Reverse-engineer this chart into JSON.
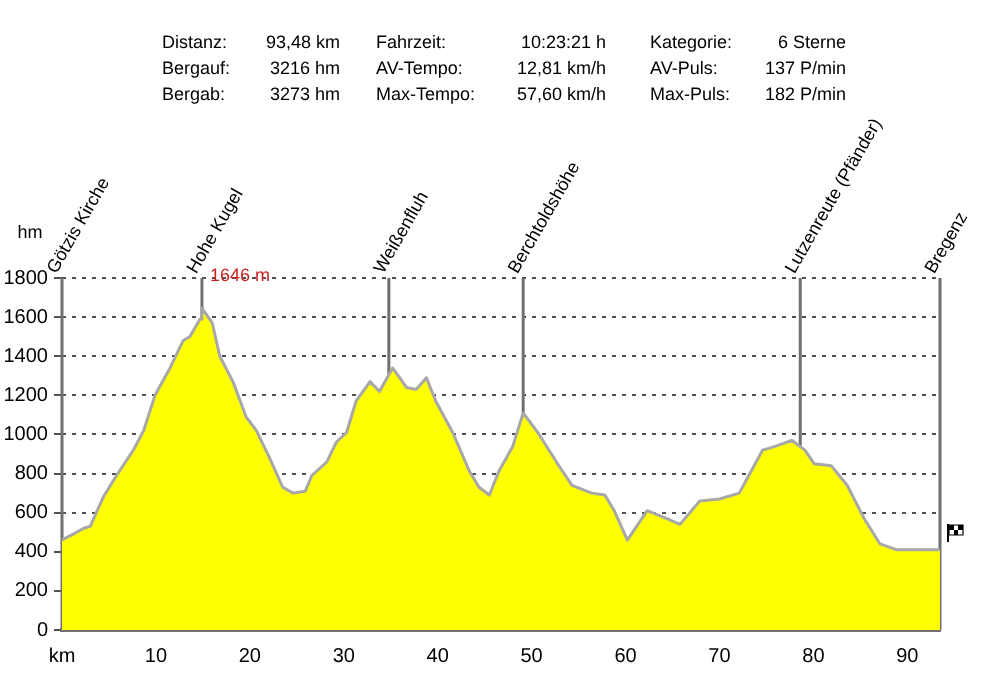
{
  "chart_data": {
    "type": "area",
    "ylabel": "hm",
    "x": [
      0,
      1.2,
      2.3,
      3.0,
      4.4,
      5.8,
      7.6,
      8.7,
      9.9,
      11.5,
      12.9,
      13.6,
      14.7,
      14.9,
      16.0,
      16.8,
      18.2,
      19.6,
      20.7,
      22.1,
      23.5,
      24.6,
      25.9,
      26.6,
      28.2,
      29.2,
      30.3,
      31.3,
      32.8,
      33.8,
      35.2,
      36.7,
      37.7,
      38.8,
      39.8,
      41.6,
      43.4,
      44.4,
      45.5,
      46.5,
      48.0,
      49.1,
      50.8,
      52.9,
      54.3,
      56.4,
      57.8,
      58.8,
      60.2,
      62.3,
      64.4,
      65.8,
      67.9,
      70.0,
      72.1,
      74.6,
      76.0,
      77.7,
      79.1,
      80.1,
      81.9,
      83.6,
      85.4,
      87.1,
      88.9,
      92.7,
      93.48
    ],
    "values": [
      460,
      490,
      520,
      530,
      680,
      790,
      920,
      1020,
      1200,
      1340,
      1480,
      1500,
      1590,
      1646,
      1570,
      1400,
      1270,
      1090,
      1020,
      880,
      730,
      700,
      710,
      790,
      860,
      960,
      1010,
      1170,
      1270,
      1220,
      1340,
      1240,
      1230,
      1290,
      1170,
      1010,
      810,
      730,
      690,
      810,
      940,
      1110,
      1000,
      840,
      740,
      700,
      690,
      610,
      460,
      610,
      570,
      540,
      660,
      670,
      700,
      920,
      940,
      970,
      920,
      850,
      840,
      740,
      570,
      440,
      410,
      410,
      410
    ],
    "color": "#ffff00",
    "xlim": [
      0,
      93.48
    ],
    "xticks": [
      {
        "value": 0,
        "label": "km"
      },
      10,
      20,
      30,
      40,
      50,
      60,
      70,
      80,
      90
    ],
    "ylim": [
      0,
      1800
    ],
    "yticks": [
      0,
      200,
      400,
      600,
      800,
      1000,
      1200,
      1400,
      1600,
      1800
    ],
    "grid": "y",
    "legend": false,
    "ref_lines": [
      {
        "axis": "x",
        "value": 0,
        "label": "Götzis Kirche"
      },
      {
        "axis": "x",
        "value": 14.9,
        "label": "Hohe Kugel"
      },
      {
        "axis": "x",
        "value": 34.8,
        "label": "Weißenfluh"
      },
      {
        "axis": "x",
        "value": 49.1,
        "label": "Berchtoldshöhe"
      },
      {
        "axis": "x",
        "value": 78.6,
        "label": "Lutzenreute (Pfänder)"
      },
      {
        "axis": "x",
        "value": 93.48,
        "label": "Bregenz"
      }
    ],
    "annotations": [
      "Distanz:",
      "93,48 km",
      "Fahrzeit:",
      "10:23:21 h",
      "Kategorie:",
      "6 Sterne",
      "Bergauf:",
      "3216 hm",
      "AV-Tempo:",
      "12,81 km/h",
      "AV-Puls:",
      "137 P/min",
      "Bergab:",
      "3273 hm",
      "Max-Tempo:",
      "57,60 km/h",
      "Max-Puls:",
      "182 P/min",
      {
        "text": "1646 m",
        "x": 14.9,
        "y": 1646
      }
    ]
  }
}
